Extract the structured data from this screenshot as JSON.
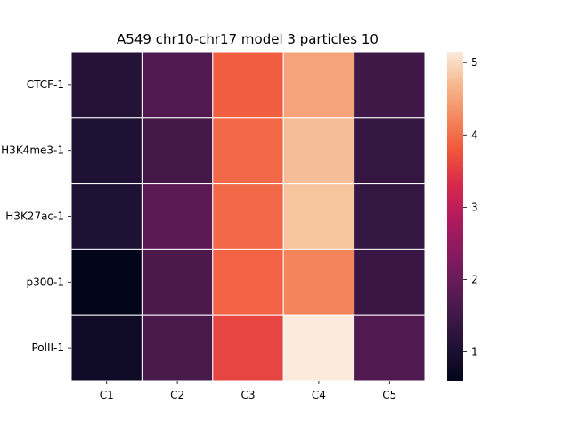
{
  "chart_data": {
    "type": "heatmap",
    "title": "A549 chr10-chr17 model 3 particles 10",
    "xlabel": "",
    "ylabel": "",
    "columns": [
      "C1",
      "C2",
      "C3",
      "C4",
      "C5"
    ],
    "rows": [
      "CTCF-1",
      "H3K4me3-1",
      "H3K27ac-1",
      "p300-1",
      "PolII-1"
    ],
    "values": [
      [
        1.15,
        1.7,
        3.85,
        4.5,
        1.5
      ],
      [
        1.05,
        1.55,
        3.95,
        4.75,
        1.35
      ],
      [
        1.05,
        1.85,
        3.95,
        4.8,
        1.35
      ],
      [
        0.6,
        1.65,
        3.9,
        4.2,
        1.4
      ],
      [
        0.8,
        1.6,
        3.6,
        5.15,
        1.7
      ]
    ],
    "colorbar": {
      "min": 0.6,
      "max": 5.15,
      "ticks": [
        1,
        2,
        3,
        4,
        5
      ],
      "colormap": "rocket"
    },
    "grid": true
  }
}
